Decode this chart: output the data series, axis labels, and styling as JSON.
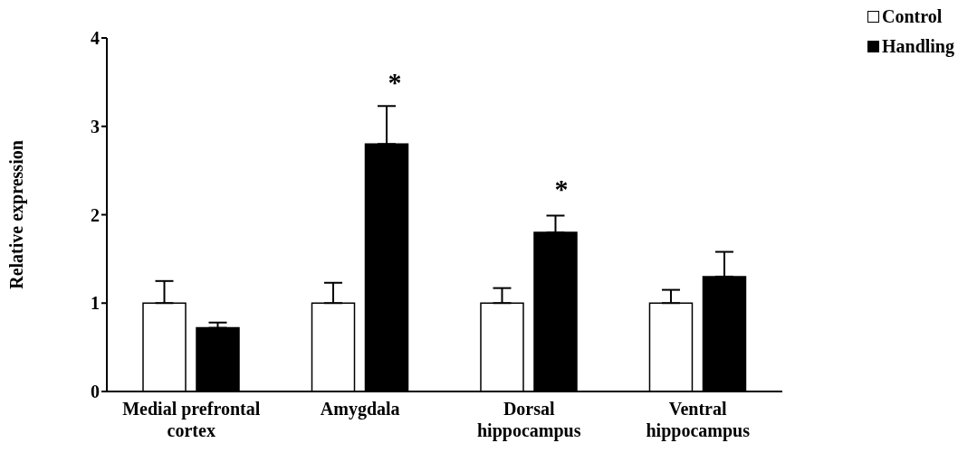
{
  "chart_data": {
    "type": "bar",
    "ylabel": "Relative expression",
    "categories": [
      "Medial prefrontal cortex",
      "Amygdala",
      "Dorsal hippocampus",
      "Ventral hippocampus"
    ],
    "series": [
      {
        "name": "Control",
        "color": "#ffffff",
        "values": [
          1,
          1,
          1,
          1
        ],
        "errors": [
          [
            1,
            1.25
          ],
          [
            1,
            1.23
          ],
          [
            1,
            1.17
          ],
          [
            1,
            1.15
          ]
        ]
      },
      {
        "name": "Handling",
        "color": "#000000",
        "values": [
          0.72,
          2.8,
          1.8,
          1.3
        ],
        "errors": [
          [
            0.72,
            0.78
          ],
          [
            2.8,
            3.23
          ],
          [
            1.8,
            1.99
          ],
          [
            1.3,
            1.58
          ]
        ]
      }
    ],
    "ylim": [
      0,
      4
    ],
    "yticks": [
      0,
      1,
      2,
      3,
      4
    ],
    "grid": false,
    "legend": "top right",
    "annotations": [
      "*",
      "*"
    ]
  }
}
